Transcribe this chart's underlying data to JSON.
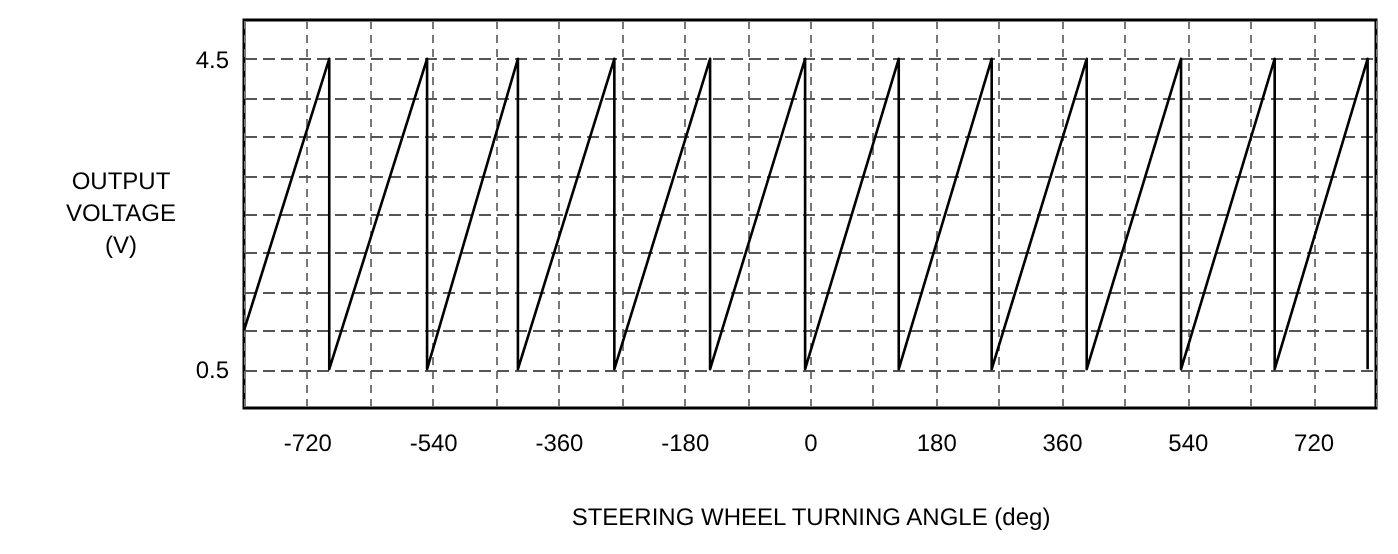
{
  "chart_data": {
    "type": "line",
    "xlabel": "STEERING WHEEL TURNING ANGLE (deg)",
    "ylabel": "OUTPUT\nVOLTAGE\n(V)",
    "xlim": [
      -810,
      810
    ],
    "ylim": [
      0,
      5
    ],
    "xticks": [
      {
        "value": -810,
        "label": null
      },
      -720,
      {
        "value": -630,
        "label": null
      },
      -540,
      {
        "value": -450,
        "label": null
      },
      -360,
      {
        "value": -270,
        "label": null
      },
      -180,
      {
        "value": -90,
        "label": null
      },
      0,
      {
        "value": 90,
        "label": null
      },
      180,
      {
        "value": 270,
        "label": null
      },
      360,
      {
        "value": 450,
        "label": null
      },
      540,
      {
        "value": 630,
        "label": null
      },
      720,
      {
        "value": 810,
        "label": null
      }
    ],
    "yticks": [
      0.5,
      {
        "value": 1.0,
        "label": null
      },
      {
        "value": 1.5,
        "label": null
      },
      {
        "value": 2.0,
        "label": null
      },
      {
        "value": 2.5,
        "label": null
      },
      {
        "value": 3.0,
        "label": null
      },
      {
        "value": 3.5,
        "label": null
      },
      {
        "value": 4.0,
        "label": null
      },
      4.5
    ],
    "grid": true,
    "marker": "none",
    "line_style": "solid",
    "series": [
      {
        "color": "#000000",
        "x": [
          -810,
          -688,
          -688,
          -548,
          -548,
          -418,
          -418,
          -280,
          -280,
          -143,
          -143,
          -7,
          -7,
          127,
          127,
          260,
          260,
          396,
          396,
          531,
          531,
          665,
          665,
          798,
          798
        ],
        "values": [
          1.0,
          4.5,
          0.5,
          4.5,
          0.5,
          4.5,
          0.5,
          4.5,
          0.5,
          4.5,
          0.5,
          4.5,
          0.5,
          4.5,
          0.5,
          4.5,
          0.5,
          4.5,
          0.5,
          4.5,
          0.5,
          4.5,
          0.5,
          4.5,
          0.5
        ]
      }
    ]
  }
}
